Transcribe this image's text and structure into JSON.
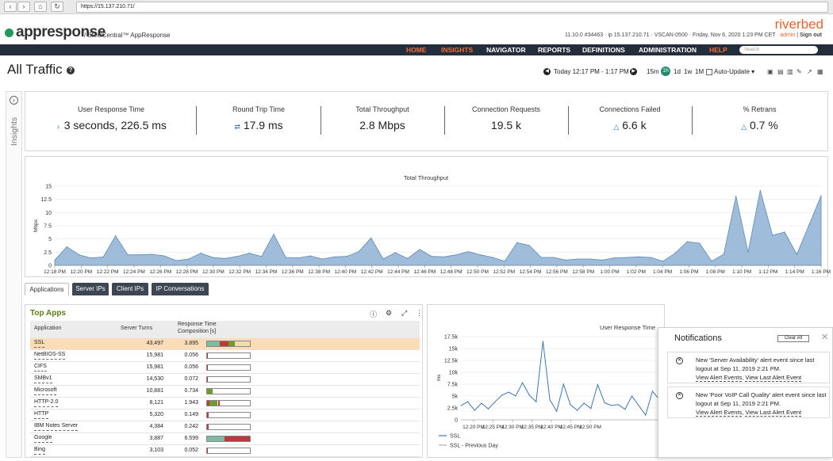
{
  "browser": {
    "url": "https://15.137.210.71/"
  },
  "header": {
    "logo": "appresponse",
    "product": "/ SteelCentral™ AppResponse",
    "brand": "riverbed",
    "sysinfo": "11.10.0 #34463  ·  ip 15.137.210.71  ·  VSCAN-0500  ·  Friday, Nov 6, 2020 1:23 PM CET",
    "user": "admin",
    "signout": "Sign out"
  },
  "nav": {
    "items": [
      "HOME",
      "INSIGHTS",
      "NAVIGATOR",
      "REPORTS",
      "DEFINITIONS",
      "ADMINISTRATION",
      "HELP"
    ],
    "search_placeholder": "Search"
  },
  "page": {
    "title": "All Traffic",
    "time_range": "Today 12:17 PM - 1:17 PM",
    "ranges": [
      "15m",
      "1h",
      "1d",
      "1w",
      "1M"
    ],
    "selected_range": "1h",
    "auto_update": "Auto-Update ▾"
  },
  "insights_label": "Insights",
  "kpis": [
    {
      "label": "User Response Time",
      "value": "3 seconds, 226.5 ms",
      "icon": "stopwatch-icon"
    },
    {
      "label": "Round Trip Time",
      "value": "17.9 ms",
      "icon": "exchange-icon"
    },
    {
      "label": "Total Throughput",
      "value": "2.8 Mbps"
    },
    {
      "label": "Connection Requests",
      "value": "19.5 k"
    },
    {
      "label": "Connections Failed",
      "value": "6.6 k",
      "icon": "warning-icon"
    },
    {
      "label": "% Retrans",
      "value": "0.7 %",
      "icon": "warning-icon"
    }
  ],
  "chart_data": [
    {
      "type": "area",
      "title": "Total Throughput",
      "ylabel": "Mbps",
      "ylim": [
        0,
        15
      ],
      "yticks": [
        0,
        2.5,
        5,
        7.5,
        10,
        12.5,
        15
      ],
      "xticks": [
        "12:18 PM",
        "12:20 PM",
        "12:22 PM",
        "12:24 PM",
        "12:26 PM",
        "12:28 PM",
        "12:30 PM",
        "12:32 PM",
        "12:34 PM",
        "12:36 PM",
        "12:38 PM",
        "12:40 PM",
        "12:42 PM",
        "12:44 PM",
        "12:46 PM",
        "12:48 PM",
        "12:50 PM",
        "12:52 PM",
        "12:54 PM",
        "12:56 PM",
        "12:58 PM",
        "1:00 PM",
        "1:02 PM",
        "1:04 PM",
        "1:06 PM",
        "1:08 PM",
        "1:10 PM",
        "1:12 PM",
        "1:14 PM",
        "1:16 PM"
      ],
      "values": [
        1.0,
        3.5,
        2.0,
        1.4,
        1.6,
        5.6,
        2.0,
        2.0,
        2.1,
        1.8,
        0.9,
        1.2,
        2.3,
        1.5,
        1.3,
        1.7,
        2.3,
        1.7,
        5.9,
        1.5,
        1.4,
        1.8,
        1.2,
        1.6,
        1.7,
        2.6,
        5.2,
        1.2,
        2.4,
        1.3,
        3.0,
        1.7,
        1.6,
        2.0,
        2.6,
        2.0,
        1.5,
        0.8,
        4.3,
        3.8,
        1.5,
        1.5,
        1.0,
        1.2,
        1.2,
        1.0,
        1.4,
        1.5,
        1.6,
        1.5,
        0.8,
        2.3,
        4.5,
        4.2,
        0.8,
        2.1,
        13.1,
        2.5,
        14.2,
        5.7,
        6.3,
        2.1,
        7.6,
        13.2
      ],
      "series": [
        {
          "name": "Total Throughput",
          "color": "#7fa7cf"
        }
      ]
    },
    {
      "type": "line",
      "title": "User Response Time",
      "ylabel": "ms",
      "ylim": [
        0,
        17500
      ],
      "yticks": [
        "0",
        "2.5k",
        "5k",
        "7.5k",
        "10k",
        "12.5k",
        "15k",
        "17.5k"
      ],
      "xticks": [
        "12:20 PM",
        "12:25 PM",
        "12:30 PM",
        "12:35 PM",
        "12:40 PM",
        "12:45 PM",
        "12:50 PM"
      ],
      "series": [
        {
          "name": "SSL",
          "color": "#3b74b5",
          "values": [
            3000,
            3800,
            2000,
            3500,
            2300,
            3800,
            5200,
            5800,
            5000,
            7800,
            5200,
            3800,
            16500,
            4200,
            1800,
            7500,
            3200,
            2000,
            3500,
            2400,
            7400,
            3600,
            3000,
            3200,
            2200,
            5000,
            3000,
            1000,
            6000,
            4300
          ]
        },
        {
          "name": "SSL - Previous Day",
          "color": "#aaaaaa",
          "values": []
        }
      ]
    }
  ],
  "tabs": [
    "Applications",
    "Server IPs",
    "Client IPs",
    "IP Conversations"
  ],
  "top_apps": {
    "title": "Top Apps",
    "columns": [
      "Application",
      "Server Turns",
      "Response Time",
      "Composition [s]"
    ],
    "rows": [
      {
        "app": "SSL",
        "turns": "43,497",
        "rt": "3.895",
        "comp": [
          0.3,
          0.2,
          0.15,
          0.35
        ]
      },
      {
        "app": "NetBIOS-SS",
        "turns": "15,981",
        "rt": "0.056",
        "comp": [
          0.0,
          0.0,
          0.0,
          0.02
        ]
      },
      {
        "app": "CIFS",
        "turns": "15,981",
        "rt": "0.056",
        "comp": [
          0.0,
          0.0,
          0.0,
          0.02
        ]
      },
      {
        "app": "SMBv1",
        "turns": "14,530",
        "rt": "0.072",
        "comp": [
          0.0,
          0.0,
          0.0,
          0.02
        ]
      },
      {
        "app": "Microsoft",
        "turns": "10,881",
        "rt": "0.734",
        "comp": [
          0.0,
          0.0,
          0.13,
          0.0
        ]
      },
      {
        "app": "HTTP-2.0",
        "turns": "8,121",
        "rt": "1.943",
        "comp": [
          0.0,
          0.05,
          0.2,
          0.05
        ]
      },
      {
        "app": "HTTP",
        "turns": "5,320",
        "rt": "0.149",
        "comp": [
          0.0,
          0.03,
          0.0,
          0.0
        ]
      },
      {
        "app": "IBM Notes Server",
        "turns": "4,384",
        "rt": "0.242",
        "comp": [
          0.0,
          0.0,
          0.0,
          0.04
        ]
      },
      {
        "app": "Google",
        "turns": "3,887",
        "rt": "6.599",
        "comp": [
          0.4,
          0.0,
          0.0,
          0.6
        ]
      },
      {
        "app": "Bing",
        "turns": "3,103",
        "rt": "0.052",
        "comp": [
          0.0,
          0.0,
          0.0,
          0.02
        ]
      }
    ],
    "colors": {
      "seg1": "#7fb9a0",
      "seg2": "#b83a3a",
      "seg3": "#6e9a2e",
      "seg4": "#b83a3a",
      "seg_ssl4": "#f3d9b5"
    }
  },
  "notifications": {
    "title": "Notifications",
    "clear_all": "Clear All",
    "items": [
      {
        "text": "New 'Server Availability' alert event since last logout at Sep 11, 2019 2:21 PM.",
        "link1": "View Alert Events",
        "link2": "View Last Alert Event"
      },
      {
        "text": "New 'Poor VoIP Call Quality' alert event since last logout at Sep 11, 2019 2:21 PM.",
        "link1": "View Alert Events",
        "link2": "View Last Alert Event"
      }
    ]
  }
}
